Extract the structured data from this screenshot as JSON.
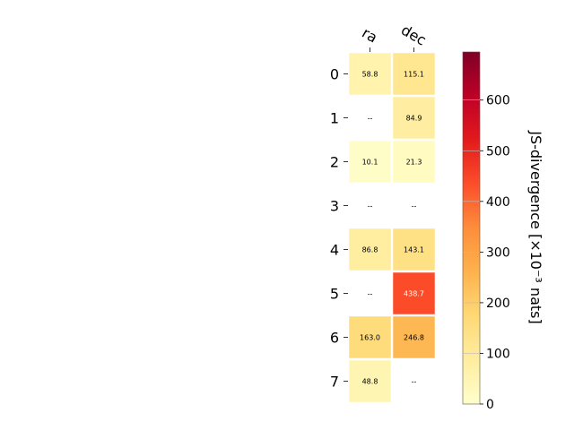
{
  "chart_data": {
    "type": "heatmap",
    "columns": [
      "ra",
      "dec"
    ],
    "rows": [
      "0",
      "1",
      "2",
      "3",
      "4",
      "5",
      "6",
      "7"
    ],
    "values": [
      [
        58.8,
        115.1
      ],
      [
        null,
        84.9
      ],
      [
        10.1,
        21.3
      ],
      [
        null,
        null
      ],
      [
        86.8,
        143.1
      ],
      [
        null,
        438.7
      ],
      [
        163.0,
        246.8
      ],
      [
        48.8,
        null
      ]
    ],
    "cell_labels": [
      [
        "58.8",
        "115.1"
      ],
      [
        "--",
        "84.9"
      ],
      [
        "10.1",
        "21.3"
      ],
      [
        "--",
        "--"
      ],
      [
        "86.8",
        "143.1"
      ],
      [
        "--",
        "438.7"
      ],
      [
        "163.0",
        "246.8"
      ],
      [
        "48.8",
        "--"
      ]
    ],
    "colormap": "YlOrRd",
    "colorbar": {
      "label": "JS-divergence [×10⁻³ nats]",
      "range": [
        0,
        695
      ],
      "ticks": [
        0,
        100,
        200,
        300,
        400,
        500,
        600
      ],
      "tick_labels": [
        "0",
        "100",
        "200",
        "300",
        "400",
        "500",
        "600"
      ]
    }
  }
}
